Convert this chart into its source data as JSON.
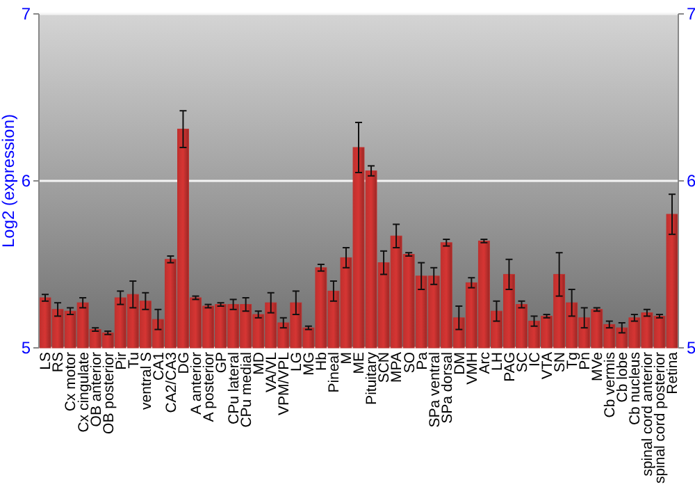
{
  "chart_data": {
    "type": "bar",
    "ylabel": "Log2 (expression)",
    "categories": [
      "LS",
      "RS",
      "Cx motor",
      "Cx cingulate",
      "OB anterior",
      "OB posterior",
      "Pir",
      "Tu",
      "ventral S",
      "CA1",
      "CA2/CA3",
      "DG",
      "A anterior",
      "A posterior",
      "GP",
      "CPu lateral",
      "CPu medial",
      "MD",
      "VA/VL",
      "VPM/VPL",
      "LG",
      "MG",
      "Hb",
      "Pineal",
      "M",
      "ME",
      "Pituitary",
      "SCN",
      "MPA",
      "SO",
      "Pa",
      "SPa ventral",
      "SPa dorsal",
      "DM",
      "VMH",
      "Arc",
      "LH",
      "PAG",
      "SC",
      "IC",
      "VTA",
      "SN",
      "Tg",
      "Pn",
      "MVe",
      "Cb vermis",
      "Cb lobe",
      "Cb nucleus",
      "spinal cord anterior",
      "spinal cord posterior",
      "Retina"
    ],
    "values": [
      5.3,
      5.23,
      5.22,
      5.27,
      5.11,
      5.09,
      5.3,
      5.32,
      5.28,
      5.17,
      5.53,
      6.31,
      5.3,
      5.25,
      5.26,
      5.26,
      5.26,
      5.2,
      5.27,
      5.15,
      5.27,
      5.12,
      5.48,
      5.34,
      5.54,
      6.2,
      6.06,
      5.51,
      5.67,
      5.56,
      5.43,
      5.43,
      5.63,
      5.18,
      5.39,
      5.64,
      5.22,
      5.44,
      5.26,
      5.16,
      5.19,
      5.44,
      5.27,
      5.18,
      5.23,
      5.14,
      5.12,
      5.18,
      5.21,
      5.19,
      5.8
    ],
    "errors": [
      0.02,
      0.04,
      0.02,
      0.03,
      0.01,
      0.01,
      0.04,
      0.08,
      0.05,
      0.06,
      0.02,
      0.11,
      0.01,
      0.01,
      0.01,
      0.03,
      0.04,
      0.02,
      0.06,
      0.03,
      0.07,
      0.01,
      0.02,
      0.06,
      0.06,
      0.15,
      0.03,
      0.07,
      0.07,
      0.01,
      0.08,
      0.05,
      0.02,
      0.07,
      0.03,
      0.01,
      0.06,
      0.09,
      0.02,
      0.03,
      0.01,
      0.13,
      0.08,
      0.06,
      0.01,
      0.02,
      0.03,
      0.02,
      0.02,
      0.01,
      0.12
    ],
    "color": "#c0302e",
    "ylim": [
      5,
      7
    ],
    "yticks": [
      5,
      6,
      7
    ],
    "y2lim": [
      5,
      7
    ],
    "y2ticks": [
      5,
      6,
      7
    ],
    "grid": "y"
  }
}
